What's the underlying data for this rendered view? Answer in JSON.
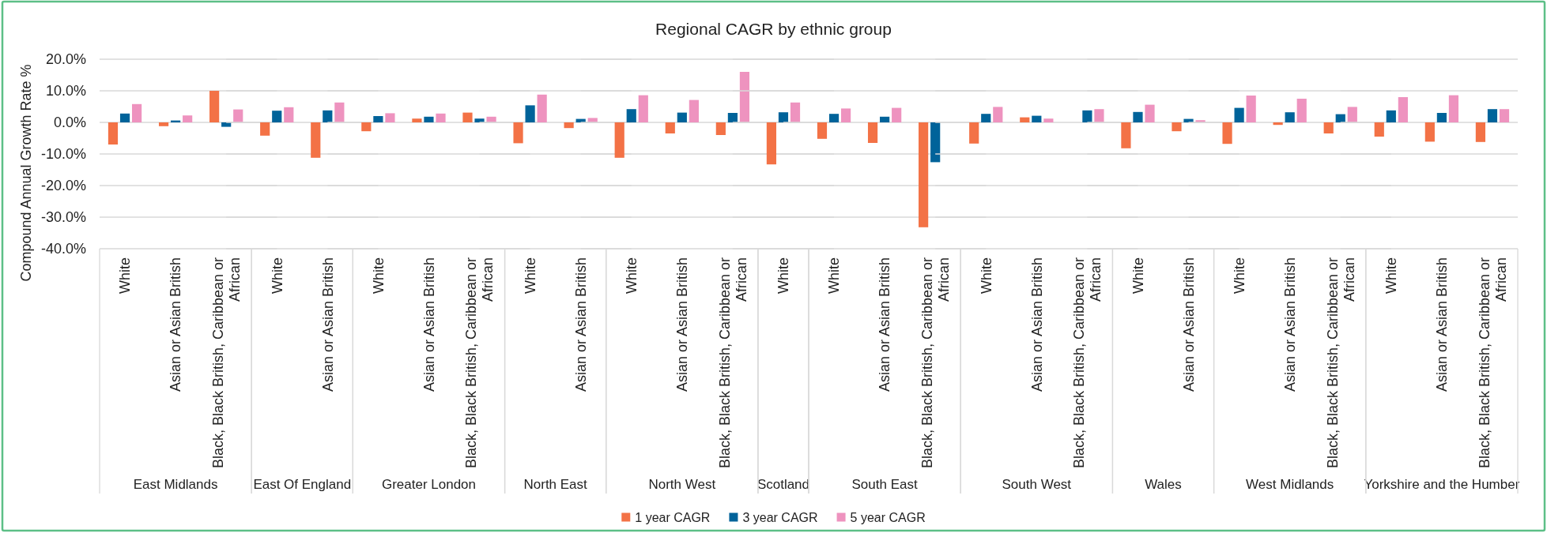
{
  "chart_data": [
    {
      "type": "bar",
      "ylabel": "Compound Annual Growth Rate %",
      "xlabel": "East Midlands",
      "categories": [
        "White",
        "Asian or Asian British",
        "Black, Black British, Caribbean or African"
      ],
      "series": [
        {
          "name": "1 year CAGR",
          "color": "#f37246",
          "values": [
            -7.0,
            -1.2,
            10.0
          ]
        },
        {
          "name": "3 year CAGR",
          "color": "#00639a",
          "values": [
            2.8,
            0.6,
            -1.4
          ]
        },
        {
          "name": "5 year CAGR",
          "color": "#ee93bf",
          "values": [
            5.8,
            2.2,
            4.1
          ]
        }
      ],
      "ylim": [
        -40,
        20
      ],
      "yticks": [
        {
          "value": -40,
          "label": "-40.0%"
        },
        {
          "value": -30,
          "label": "-30.0%"
        },
        {
          "value": -20,
          "label": "-20.0%"
        },
        {
          "value": -10,
          "label": "-10.0%"
        },
        {
          "value": 0,
          "label": "0.0%"
        },
        {
          "value": 10,
          "label": "10.0%"
        },
        {
          "value": 20,
          "label": "20.0%"
        }
      ],
      "grid": "y",
      "legend": "bottom"
    },
    {
      "type": "bar",
      "xlabel": "East Of England",
      "categories": [
        "White",
        "Asian or Asian British"
      ],
      "series": [
        {
          "color": "#f37246",
          "values": [
            -4.2,
            -11.2
          ]
        },
        {
          "color": "#00639a",
          "values": [
            3.7,
            3.8
          ]
        },
        {
          "color": "#ee93bf",
          "values": [
            4.8,
            6.3
          ]
        }
      ],
      "ylim": [
        -40,
        20
      ],
      "yticks": [
        -40,
        -30,
        -20,
        -10,
        0,
        10,
        20
      ],
      "grid": "y",
      "tick_labels": "x"
    },
    {
      "type": "bar",
      "xlabel": "Greater London",
      "categories": [
        "White",
        "Asian or Asian British",
        "Black, Black British, Caribbean or African"
      ],
      "series": [
        {
          "color": "#f37246",
          "values": [
            -2.8,
            1.2,
            3.1
          ]
        },
        {
          "color": "#00639a",
          "values": [
            2.0,
            1.8,
            1.2
          ]
        },
        {
          "color": "#ee93bf",
          "values": [
            2.9,
            2.8,
            1.8
          ]
        }
      ],
      "ylim": [
        -40,
        20
      ],
      "yticks": [
        -40,
        -30,
        -20,
        -10,
        0,
        10,
        20
      ],
      "grid": "y",
      "tick_labels": "x"
    },
    {
      "type": "bar",
      "xlabel": "North East",
      "categories": [
        "White",
        "Asian or Asian British"
      ],
      "series": [
        {
          "color": "#f37246",
          "values": [
            -6.6,
            -1.8
          ]
        },
        {
          "color": "#00639a",
          "values": [
            5.4,
            1.1
          ]
        },
        {
          "color": "#ee93bf",
          "values": [
            8.8,
            1.4
          ]
        }
      ],
      "ylim": [
        -40,
        20
      ],
      "yticks": [
        -40,
        -30,
        -20,
        -10,
        0,
        10,
        20
      ],
      "grid": "y",
      "tick_labels": "x"
    },
    {
      "type": "bar",
      "xlabel": "North West",
      "categories": [
        "White",
        "Asian or Asian British",
        "Black, Black British, Caribbean or African"
      ],
      "series": [
        {
          "color": "#f37246",
          "values": [
            -11.2,
            -3.5,
            -4.0
          ]
        },
        {
          "color": "#00639a",
          "values": [
            4.2,
            3.1,
            3.0
          ]
        },
        {
          "color": "#ee93bf",
          "values": [
            8.6,
            7.1,
            16.0
          ]
        }
      ],
      "ylim": [
        -40,
        20
      ],
      "yticks": [
        -40,
        -30,
        -20,
        -10,
        0,
        10,
        20
      ],
      "grid": "y",
      "tick_labels": "x"
    },
    {
      "type": "bar",
      "title": "Regional CAGR by ethnic group",
      "xlabel": "Scotland",
      "categories": [
        "White"
      ],
      "series": [
        {
          "color": "#f37246",
          "values": [
            -13.3
          ]
        },
        {
          "color": "#00639a",
          "values": [
            3.2
          ]
        },
        {
          "color": "#ee93bf",
          "values": [
            6.3
          ]
        }
      ],
      "ylim": [
        -40,
        20
      ],
      "yticks": [
        -40,
        -30,
        -20,
        -10,
        0,
        10,
        20
      ],
      "grid": "y",
      "tick_labels": "x"
    },
    {
      "type": "bar",
      "xlabel": "South East",
      "categories": [
        "White",
        "Asian or Asian British",
        "Black, Black British, Caribbean or African"
      ],
      "series": [
        {
          "color": "#f37246",
          "values": [
            -5.2,
            -6.5,
            -33.2
          ]
        },
        {
          "color": "#00639a",
          "values": [
            2.7,
            1.8,
            -12.6
          ]
        },
        {
          "color": "#ee93bf",
          "values": [
            4.4,
            4.6,
            null
          ]
        }
      ],
      "ylim": [
        -40,
        20
      ],
      "yticks": [
        -40,
        -30,
        -20,
        -10,
        0,
        10,
        20
      ],
      "grid": "y",
      "tick_labels": "x"
    },
    {
      "type": "bar",
      "xlabel": "South West",
      "categories": [
        "White",
        "Asian or Asian British",
        "Black, Black British, Caribbean or African"
      ],
      "series": [
        {
          "color": "#f37246",
          "values": [
            -6.7,
            1.6,
            null
          ]
        },
        {
          "color": "#00639a",
          "values": [
            2.7,
            2.1,
            3.8
          ]
        },
        {
          "color": "#ee93bf",
          "values": [
            4.9,
            1.2,
            4.2
          ]
        }
      ],
      "ylim": [
        -40,
        20
      ],
      "yticks": [
        -40,
        -30,
        -20,
        -10,
        0,
        10,
        20
      ],
      "grid": "y",
      "tick_labels": "x"
    },
    {
      "type": "bar",
      "xlabel": "Wales",
      "categories": [
        "White",
        "Asian or Asian British"
      ],
      "series": [
        {
          "color": "#f37246",
          "values": [
            -8.2,
            -2.8
          ]
        },
        {
          "color": "#00639a",
          "values": [
            3.3,
            1.1
          ]
        },
        {
          "color": "#ee93bf",
          "values": [
            5.6,
            0.7
          ]
        }
      ],
      "ylim": [
        -40,
        20
      ],
      "yticks": [
        -40,
        -30,
        -20,
        -10,
        0,
        10,
        20
      ],
      "grid": "y",
      "tick_labels": "x"
    },
    {
      "type": "bar",
      "xlabel": "West Midlands",
      "categories": [
        "White",
        "Asian or Asian British",
        "Black, Black British, Caribbean or African"
      ],
      "series": [
        {
          "color": "#f37246",
          "values": [
            -6.8,
            -0.8,
            -3.5
          ]
        },
        {
          "color": "#00639a",
          "values": [
            4.6,
            3.2,
            2.6
          ]
        },
        {
          "color": "#ee93bf",
          "values": [
            8.5,
            7.5,
            4.9
          ]
        }
      ],
      "ylim": [
        -40,
        20
      ],
      "yticks": [
        -40,
        -30,
        -20,
        -10,
        0,
        10,
        20
      ],
      "grid": "y",
      "tick_labels": "x"
    },
    {
      "type": "bar",
      "xlabel": "Yorkshire and the Humber",
      "categories": [
        "White",
        "Asian or Asian British",
        "Black, Black British, Caribbean or African"
      ],
      "series": [
        {
          "color": "#f37246",
          "values": [
            -4.5,
            -6.1,
            -6.2
          ]
        },
        {
          "color": "#00639a",
          "values": [
            3.8,
            3.0,
            4.2
          ]
        },
        {
          "color": "#ee93bf",
          "values": [
            8.0,
            8.6,
            4.2
          ]
        }
      ],
      "ylim": [
        -40,
        20
      ],
      "yticks": [
        -40,
        -30,
        -20,
        -10,
        0,
        10,
        20
      ],
      "grid": "y",
      "tick_labels": "x"
    }
  ]
}
